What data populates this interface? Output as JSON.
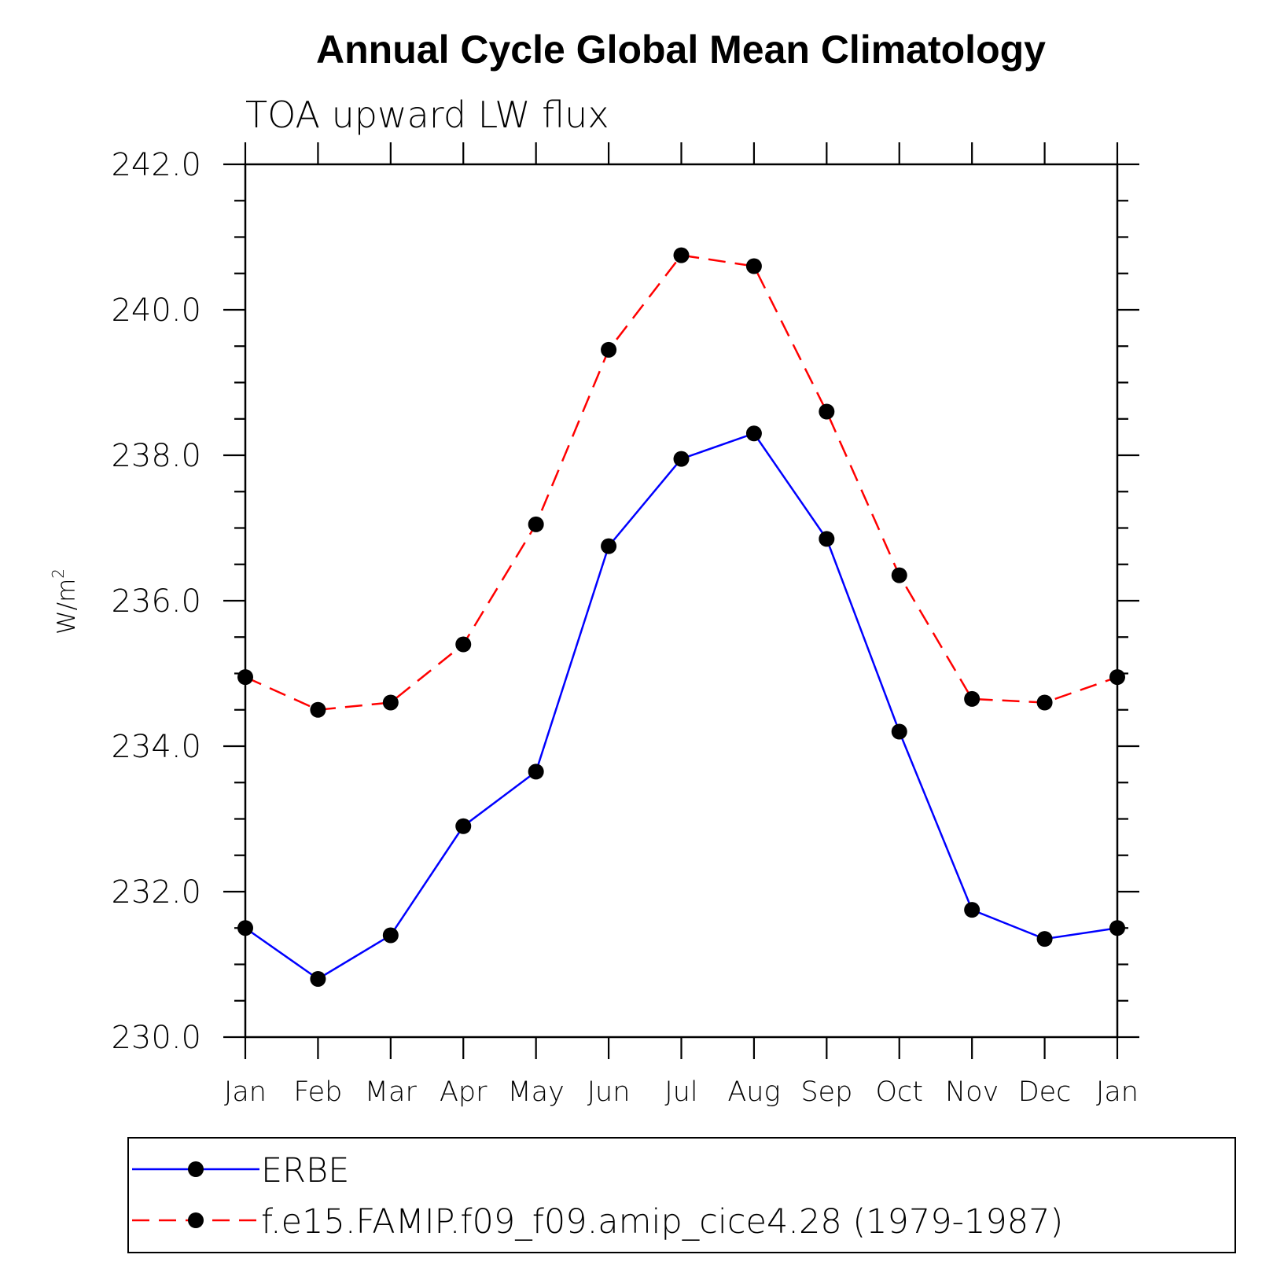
{
  "chart_data": {
    "type": "line",
    "title": "Annual Cycle Global Mean Climatology",
    "subtitle": "TOA upward LW flux",
    "ylabel": "W/m",
    "ylabel_superscript": "2",
    "ylim": [
      230.0,
      242.0
    ],
    "yticks": [
      "230.0",
      "232.0",
      "234.0",
      "236.0",
      "238.0",
      "240.0",
      "242.0"
    ],
    "categories": [
      "Jan",
      "Feb",
      "Mar",
      "Apr",
      "May",
      "Jun",
      "Jul",
      "Aug",
      "Sep",
      "Oct",
      "Nov",
      "Dec",
      "Jan"
    ],
    "grid": false,
    "legend_placement": "bottom",
    "series": [
      {
        "name": "ERBE",
        "color": "#0000ff",
        "dash": "solid",
        "marker": "filled-circle",
        "values": [
          231.5,
          230.8,
          231.4,
          232.9,
          233.65,
          236.75,
          237.95,
          238.3,
          236.85,
          234.2,
          231.75,
          231.35,
          231.5
        ]
      },
      {
        "name": "f.e15.FAMIP.f09_f09.amip_cice4.28 (1979-1987)",
        "color": "#ff0000",
        "dash": "dashed",
        "marker": "filled-circle",
        "values": [
          234.95,
          234.5,
          234.6,
          235.4,
          237.05,
          239.45,
          240.75,
          240.6,
          238.6,
          236.35,
          234.65,
          234.6,
          234.95
        ]
      }
    ]
  }
}
